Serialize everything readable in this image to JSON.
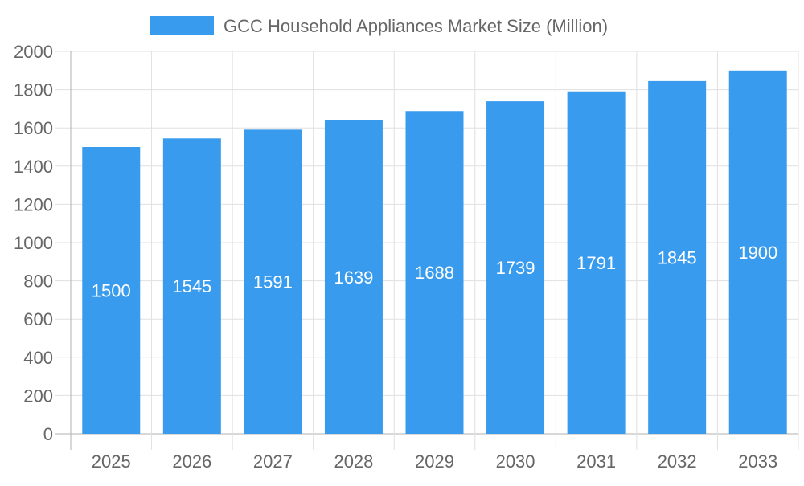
{
  "chart_data": {
    "type": "bar",
    "categories": [
      "2025",
      "2026",
      "2027",
      "2028",
      "2029",
      "2030",
      "2031",
      "2032",
      "2033"
    ],
    "series": [
      {
        "name": "GCC Household Appliances Market Size (Million)",
        "values": [
          1500,
          1545,
          1591,
          1639,
          1688,
          1739,
          1791,
          1845,
          1900
        ]
      }
    ],
    "ylim": [
      0,
      2000
    ],
    "yticks": [
      0,
      200,
      400,
      600,
      800,
      1000,
      1200,
      1400,
      1600,
      1800,
      2000
    ],
    "grid": true,
    "legend_position": "top",
    "data_labels": true,
    "colors": {
      "bar": "#389bee",
      "grid": "#e0e0e0",
      "axis": "#b0b0b0",
      "text": "#666666",
      "label": "#ffffff"
    }
  }
}
